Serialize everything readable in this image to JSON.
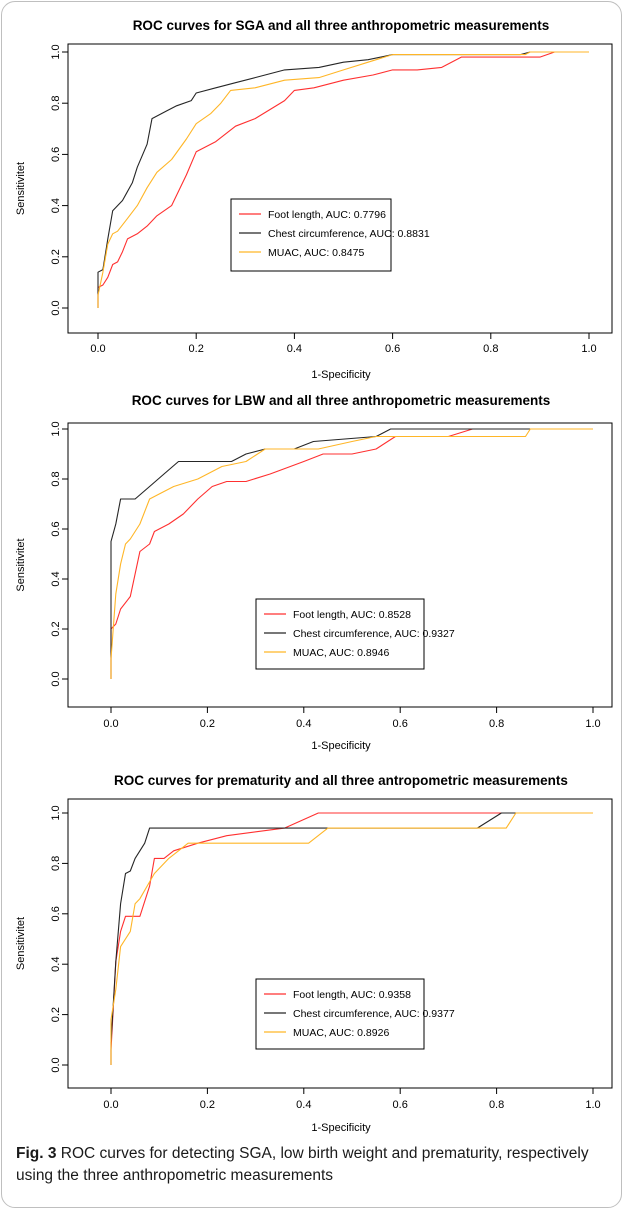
{
  "colors": {
    "foot": "#ff3030",
    "chest": "#262626",
    "muac": "#ffb627"
  },
  "caption": {
    "label": "Fig. 3",
    "text": " ROC curves for detecting SGA, low birth weight and prematurity, respectively using the three anthropometric measurements"
  },
  "chart_data": [
    {
      "type": "line",
      "title": "ROC curves for SGA and all three anthropometric measurements",
      "xlabel": "1-Specificity",
      "ylabel": "Sensitivitet",
      "xlim": [
        0,
        1
      ],
      "ylim": [
        0,
        1
      ],
      "xticks": [
        "0.0",
        "0.2",
        "0.4",
        "0.6",
        "0.8",
        "1.0"
      ],
      "yticks": [
        "0.0",
        "0.2",
        "0.4",
        "0.6",
        "0.8",
        "1.0"
      ],
      "grid": false,
      "legend_position": "center-right",
      "series": [
        {
          "name": "Foot length, AUC: 0.7796",
          "color": "#ff3030",
          "points": [
            [
              0,
              0
            ],
            [
              0,
              0.08
            ],
            [
              0.01,
              0.09
            ],
            [
              0.02,
              0.12
            ],
            [
              0.03,
              0.17
            ],
            [
              0.04,
              0.18
            ],
            [
              0.05,
              0.22
            ],
            [
              0.06,
              0.27
            ],
            [
              0.08,
              0.29
            ],
            [
              0.1,
              0.32
            ],
            [
              0.12,
              0.36
            ],
            [
              0.15,
              0.4
            ],
            [
              0.18,
              0.52
            ],
            [
              0.2,
              0.61
            ],
            [
              0.24,
              0.65
            ],
            [
              0.28,
              0.71
            ],
            [
              0.32,
              0.74
            ],
            [
              0.38,
              0.81
            ],
            [
              0.4,
              0.85
            ],
            [
              0.44,
              0.86
            ],
            [
              0.5,
              0.89
            ],
            [
              0.56,
              0.91
            ],
            [
              0.6,
              0.93
            ],
            [
              0.65,
              0.93
            ],
            [
              0.7,
              0.94
            ],
            [
              0.74,
              0.98
            ],
            [
              0.8,
              0.98
            ],
            [
              0.9,
              0.98
            ],
            [
              0.93,
              1.0
            ],
            [
              1.0,
              1.0
            ]
          ]
        },
        {
          "name": "Chest circumference, AUC: 0.8831",
          "color": "#262626",
          "points": [
            [
              0,
              0
            ],
            [
              0,
              0.14
            ],
            [
              0.01,
              0.15
            ],
            [
              0.02,
              0.27
            ],
            [
              0.03,
              0.38
            ],
            [
              0.05,
              0.42
            ],
            [
              0.07,
              0.49
            ],
            [
              0.08,
              0.55
            ],
            [
              0.1,
              0.64
            ],
            [
              0.11,
              0.74
            ],
            [
              0.14,
              0.77
            ],
            [
              0.16,
              0.79
            ],
            [
              0.19,
              0.81
            ],
            [
              0.2,
              0.84
            ],
            [
              0.24,
              0.86
            ],
            [
              0.28,
              0.88
            ],
            [
              0.32,
              0.9
            ],
            [
              0.38,
              0.93
            ],
            [
              0.45,
              0.94
            ],
            [
              0.5,
              0.96
            ],
            [
              0.55,
              0.97
            ],
            [
              0.6,
              0.99
            ],
            [
              0.8,
              0.99
            ],
            [
              0.86,
              0.99
            ],
            [
              0.88,
              1.0
            ],
            [
              1.0,
              1.0
            ]
          ]
        },
        {
          "name": "MUAC, AUC: 0.8475",
          "color": "#ffb627",
          "points": [
            [
              0,
              0
            ],
            [
              0,
              0.05
            ],
            [
              0.01,
              0.14
            ],
            [
              0.02,
              0.25
            ],
            [
              0.03,
              0.29
            ],
            [
              0.04,
              0.3
            ],
            [
              0.06,
              0.35
            ],
            [
              0.08,
              0.4
            ],
            [
              0.1,
              0.47
            ],
            [
              0.12,
              0.53
            ],
            [
              0.15,
              0.58
            ],
            [
              0.18,
              0.66
            ],
            [
              0.2,
              0.72
            ],
            [
              0.23,
              0.76
            ],
            [
              0.25,
              0.8
            ],
            [
              0.27,
              0.85
            ],
            [
              0.32,
              0.86
            ],
            [
              0.38,
              0.89
            ],
            [
              0.45,
              0.9
            ],
            [
              0.5,
              0.93
            ],
            [
              0.55,
              0.96
            ],
            [
              0.6,
              0.99
            ],
            [
              0.8,
              0.99
            ],
            [
              0.87,
              0.99
            ],
            [
              0.88,
              1.0
            ],
            [
              1.0,
              1.0
            ]
          ]
        }
      ]
    },
    {
      "type": "line",
      "title": "ROC curves for LBW and all three anthropometric measurements",
      "xlabel": "1-Specificity",
      "ylabel": "Sensitivitet",
      "xlim": [
        0,
        1
      ],
      "ylim": [
        0,
        1
      ],
      "xticks": [
        "0.0",
        "0.2",
        "0.4",
        "0.6",
        "0.8",
        "1.0"
      ],
      "yticks": [
        "0.0",
        "0.2",
        "0.4",
        "0.6",
        "0.8",
        "1.0"
      ],
      "grid": false,
      "legend_position": "center-right",
      "series": [
        {
          "name": "Foot length, AUC: 0.8528",
          "color": "#ff3030",
          "points": [
            [
              0,
              0
            ],
            [
              0,
              0.2
            ],
            [
              0.01,
              0.22
            ],
            [
              0.02,
              0.28
            ],
            [
              0.04,
              0.33
            ],
            [
              0.06,
              0.51
            ],
            [
              0.08,
              0.54
            ],
            [
              0.09,
              0.59
            ],
            [
              0.12,
              0.62
            ],
            [
              0.15,
              0.66
            ],
            [
              0.18,
              0.72
            ],
            [
              0.21,
              0.77
            ],
            [
              0.24,
              0.79
            ],
            [
              0.28,
              0.79
            ],
            [
              0.33,
              0.82
            ],
            [
              0.4,
              0.87
            ],
            [
              0.44,
              0.9
            ],
            [
              0.5,
              0.9
            ],
            [
              0.55,
              0.92
            ],
            [
              0.59,
              0.97
            ],
            [
              0.7,
              0.97
            ],
            [
              0.75,
              1.0
            ],
            [
              1.0,
              1.0
            ]
          ]
        },
        {
          "name": "Chest circumference, AUC: 0.9327",
          "color": "#262626",
          "points": [
            [
              0,
              0
            ],
            [
              0,
              0.55
            ],
            [
              0.01,
              0.62
            ],
            [
              0.02,
              0.72
            ],
            [
              0.05,
              0.72
            ],
            [
              0.08,
              0.77
            ],
            [
              0.11,
              0.82
            ],
            [
              0.14,
              0.87
            ],
            [
              0.2,
              0.87
            ],
            [
              0.25,
              0.87
            ],
            [
              0.28,
              0.9
            ],
            [
              0.32,
              0.92
            ],
            [
              0.38,
              0.92
            ],
            [
              0.42,
              0.95
            ],
            [
              0.55,
              0.97
            ],
            [
              0.58,
              1.0
            ],
            [
              1.0,
              1.0
            ]
          ]
        },
        {
          "name": "MUAC, AUC: 0.8946",
          "color": "#ffb627",
          "points": [
            [
              0,
              0
            ],
            [
              0,
              0.08
            ],
            [
              0.01,
              0.34
            ],
            [
              0.02,
              0.46
            ],
            [
              0.03,
              0.54
            ],
            [
              0.04,
              0.56
            ],
            [
              0.06,
              0.62
            ],
            [
              0.08,
              0.72
            ],
            [
              0.1,
              0.74
            ],
            [
              0.13,
              0.77
            ],
            [
              0.18,
              0.8
            ],
            [
              0.23,
              0.85
            ],
            [
              0.28,
              0.87
            ],
            [
              0.32,
              0.92
            ],
            [
              0.43,
              0.92
            ],
            [
              0.5,
              0.95
            ],
            [
              0.55,
              0.97
            ],
            [
              0.8,
              0.97
            ],
            [
              0.86,
              0.97
            ],
            [
              0.87,
              1.0
            ],
            [
              1.0,
              1.0
            ]
          ]
        }
      ]
    },
    {
      "type": "line",
      "title": "ROC curves for prematurity and all three antropometric measurements",
      "xlabel": "1-Specificity",
      "ylabel": "Sensitivitet",
      "xlim": [
        0,
        1
      ],
      "ylim": [
        0,
        1
      ],
      "xticks": [
        "0.0",
        "0.2",
        "0.4",
        "0.6",
        "0.8",
        "1.0"
      ],
      "yticks": [
        "0.0",
        "0.2",
        "0.4",
        "0.6",
        "0.8",
        "1.0"
      ],
      "grid": false,
      "legend_position": "center-right",
      "series": [
        {
          "name": "Foot length, AUC: 0.9358",
          "color": "#ff3030",
          "points": [
            [
              0,
              0
            ],
            [
              0,
              0.06
            ],
            [
              0.01,
              0.41
            ],
            [
              0.02,
              0.53
            ],
            [
              0.03,
              0.59
            ],
            [
              0.06,
              0.59
            ],
            [
              0.08,
              0.71
            ],
            [
              0.09,
              0.82
            ],
            [
              0.11,
              0.82
            ],
            [
              0.13,
              0.85
            ],
            [
              0.18,
              0.88
            ],
            [
              0.24,
              0.91
            ],
            [
              0.36,
              0.94
            ],
            [
              0.43,
              1.0
            ],
            [
              0.8,
              1.0
            ],
            [
              1.0,
              1.0
            ]
          ]
        },
        {
          "name": "Chest circumference, AUC: 0.9377",
          "color": "#262626",
          "points": [
            [
              0,
              0
            ],
            [
              0,
              0.09
            ],
            [
              0.01,
              0.41
            ],
            [
              0.02,
              0.64
            ],
            [
              0.03,
              0.76
            ],
            [
              0.04,
              0.77
            ],
            [
              0.05,
              0.82
            ],
            [
              0.07,
              0.88
            ],
            [
              0.08,
              0.94
            ],
            [
              0.25,
              0.94
            ],
            [
              0.5,
              0.94
            ],
            [
              0.76,
              0.94
            ],
            [
              0.81,
              1.0
            ],
            [
              1.0,
              1.0
            ]
          ]
        },
        {
          "name": "MUAC, AUC: 0.8926",
          "color": "#ffb627",
          "points": [
            [
              0,
              0
            ],
            [
              0,
              0.18
            ],
            [
              0.01,
              0.3
            ],
            [
              0.02,
              0.47
            ],
            [
              0.04,
              0.53
            ],
            [
              0.05,
              0.64
            ],
            [
              0.06,
              0.66
            ],
            [
              0.09,
              0.76
            ],
            [
              0.12,
              0.82
            ],
            [
              0.14,
              0.85
            ],
            [
              0.16,
              0.88
            ],
            [
              0.41,
              0.88
            ],
            [
              0.45,
              0.94
            ],
            [
              0.82,
              0.94
            ],
            [
              0.84,
              1.0
            ],
            [
              1.0,
              1.0
            ]
          ]
        }
      ]
    }
  ]
}
